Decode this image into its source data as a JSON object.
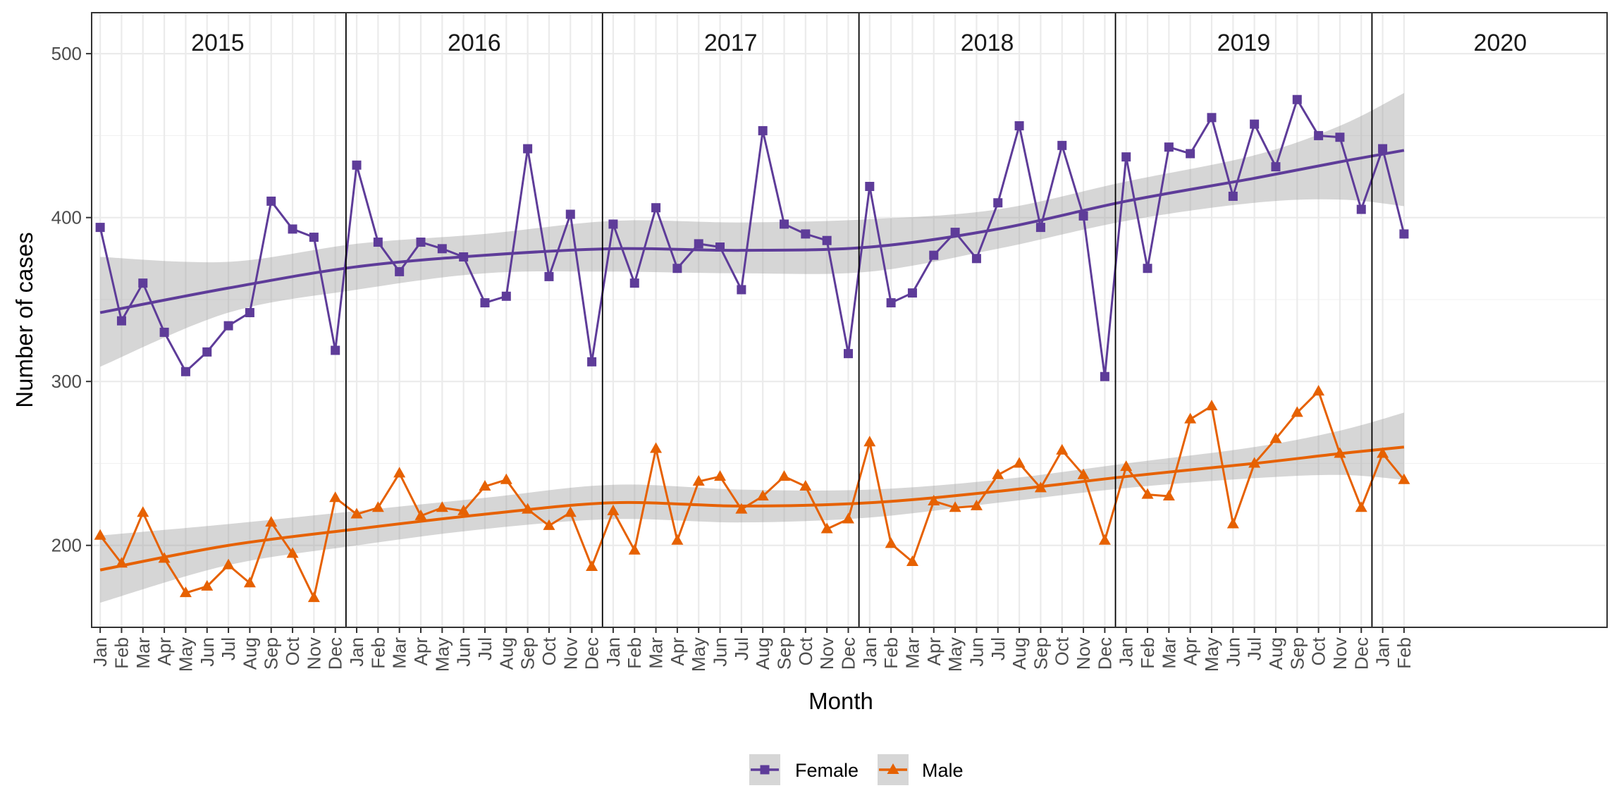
{
  "chart_data": {
    "type": "line",
    "xlabel": "Month",
    "ylabel": "Number of cases",
    "ylim": [
      150,
      525
    ],
    "yticks": [
      200,
      300,
      400,
      500
    ],
    "month_labels": [
      "Jan",
      "Feb",
      "Mar",
      "Apr",
      "May",
      "Jun",
      "Jul",
      "Aug",
      "Sep",
      "Oct",
      "Nov",
      "Dec"
    ],
    "years": [
      "2015",
      "2016",
      "2017",
      "2018",
      "2019",
      "2020"
    ],
    "n_points": 62,
    "x_range_months": [
      -0.4,
      70.5
    ],
    "grid": true,
    "legend_position": "bottom",
    "series": [
      {
        "name": "Female",
        "color": "#5e3c99",
        "marker": "square",
        "values": [
          394,
          337,
          360,
          330,
          306,
          318,
          334,
          342,
          410,
          393,
          388,
          319,
          432,
          385,
          367,
          385,
          381,
          376,
          348,
          352,
          442,
          364,
          402,
          312,
          396,
          360,
          406,
          369,
          384,
          382,
          356,
          453,
          396,
          390,
          386,
          317,
          419,
          348,
          354,
          377,
          391,
          375,
          409,
          456,
          394,
          444,
          401,
          303,
          437,
          369,
          443,
          439,
          461,
          413,
          457,
          431,
          472,
          450,
          449,
          405,
          442,
          390
        ],
        "trend": [
          [
            0,
            342
          ],
          [
            6,
            357
          ],
          [
            12,
            370
          ],
          [
            18,
            377
          ],
          [
            24,
            381
          ],
          [
            30,
            380
          ],
          [
            36,
            382
          ],
          [
            42,
            393
          ],
          [
            48,
            410
          ],
          [
            54,
            424
          ],
          [
            58,
            434
          ],
          [
            61,
            441
          ]
        ],
        "band_upper": [
          [
            0,
            376
          ],
          [
            6,
            373
          ],
          [
            12,
            384
          ],
          [
            18,
            390
          ],
          [
            24,
            398
          ],
          [
            30,
            397
          ],
          [
            36,
            399
          ],
          [
            42,
            405
          ],
          [
            48,
            422
          ],
          [
            54,
            438
          ],
          [
            58,
            456
          ],
          [
            61,
            476
          ]
        ],
        "band_lower": [
          [
            0,
            309
          ],
          [
            6,
            342
          ],
          [
            12,
            356
          ],
          [
            18,
            366
          ],
          [
            24,
            367
          ],
          [
            30,
            366
          ],
          [
            36,
            367
          ],
          [
            42,
            381
          ],
          [
            48,
            398
          ],
          [
            54,
            409
          ],
          [
            58,
            411
          ],
          [
            61,
            407
          ]
        ]
      },
      {
        "name": "Male",
        "color": "#e66101",
        "marker": "triangle",
        "values": [
          206,
          189,
          220,
          192,
          171,
          175,
          188,
          177,
          214,
          195,
          168,
          229,
          219,
          223,
          244,
          218,
          223,
          221,
          236,
          240,
          222,
          212,
          220,
          187,
          221,
          197,
          259,
          203,
          239,
          242,
          222,
          230,
          242,
          236,
          210,
          216,
          263,
          201,
          190,
          227,
          223,
          224,
          243,
          250,
          235,
          258,
          243,
          203,
          248,
          231,
          230,
          277,
          285,
          213,
          250,
          265,
          281,
          294,
          256,
          223,
          256,
          240
        ],
        "trend": [
          [
            0,
            185
          ],
          [
            6,
            200
          ],
          [
            12,
            210
          ],
          [
            18,
            219
          ],
          [
            24,
            226
          ],
          [
            30,
            224
          ],
          [
            36,
            226
          ],
          [
            42,
            233
          ],
          [
            48,
            242
          ],
          [
            54,
            250
          ],
          [
            58,
            256
          ],
          [
            61,
            260
          ]
        ],
        "band_upper": [
          [
            0,
            206
          ],
          [
            6,
            213
          ],
          [
            12,
            221
          ],
          [
            18,
            229
          ],
          [
            24,
            237
          ],
          [
            30,
            234
          ],
          [
            36,
            234
          ],
          [
            42,
            240
          ],
          [
            48,
            250
          ],
          [
            54,
            260
          ],
          [
            58,
            270
          ],
          [
            61,
            281
          ]
        ],
        "band_lower": [
          [
            0,
            165
          ],
          [
            6,
            188
          ],
          [
            12,
            200
          ],
          [
            18,
            210
          ],
          [
            24,
            216
          ],
          [
            30,
            214
          ],
          [
            36,
            217
          ],
          [
            42,
            226
          ],
          [
            48,
            235
          ],
          [
            54,
            241
          ],
          [
            58,
            243
          ],
          [
            61,
            240
          ]
        ]
      }
    ]
  }
}
